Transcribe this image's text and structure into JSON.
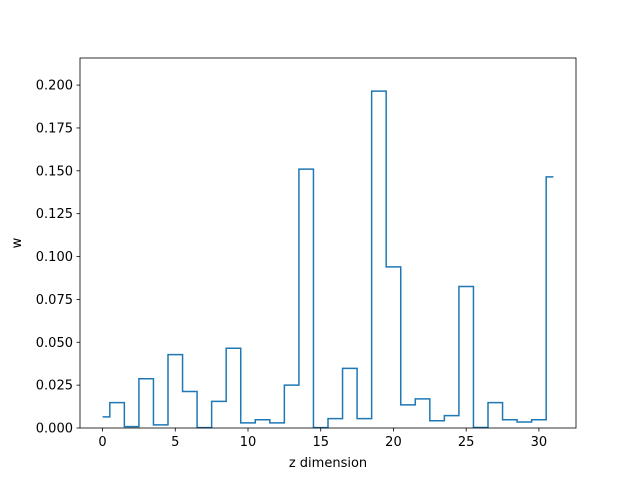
{
  "chart_data": {
    "type": "line",
    "drawstyle": "steps-mid",
    "title": "",
    "xlabel": "z dimension",
    "ylabel": "w",
    "xlim": [
      -1.55,
      32.55
    ],
    "ylim": [
      0,
      0.2158
    ],
    "x_ticks": [
      0,
      5,
      10,
      15,
      20,
      25,
      30
    ],
    "x_tick_labels": [
      "0",
      "5",
      "10",
      "15",
      "20",
      "25",
      "30"
    ],
    "y_ticks": [
      0,
      0.025,
      0.05,
      0.075,
      0.1,
      0.125,
      0.15,
      0.175,
      0.2
    ],
    "y_tick_labels": [
      "0.000",
      "0.025",
      "0.050",
      "0.075",
      "0.100",
      "0.125",
      "0.150",
      "0.175",
      "0.200"
    ],
    "grid": false,
    "legend": "none",
    "series": [
      {
        "color": "#1f77b4",
        "x": [
          0,
          1,
          2,
          3,
          4,
          5,
          6,
          7,
          8,
          9,
          10,
          11,
          12,
          13,
          14,
          15,
          16,
          17,
          18,
          19,
          20,
          21,
          22,
          23,
          24,
          25,
          26,
          27,
          28,
          29,
          30,
          31
        ],
        "values": [
          0.0065,
          0.0148,
          0.0008,
          0.0287,
          0.0018,
          0.0428,
          0.0213,
          0.0002,
          0.0155,
          0.0465,
          0.003,
          0.0048,
          0.003,
          0.025,
          0.151,
          0.0002,
          0.0055,
          0.0348,
          0.0055,
          0.1965,
          0.094,
          0.0135,
          0.017,
          0.0042,
          0.0072,
          0.0825,
          0.0003,
          0.0148,
          0.0048,
          0.0035,
          0.0048,
          0.1465
        ]
      }
    ]
  }
}
